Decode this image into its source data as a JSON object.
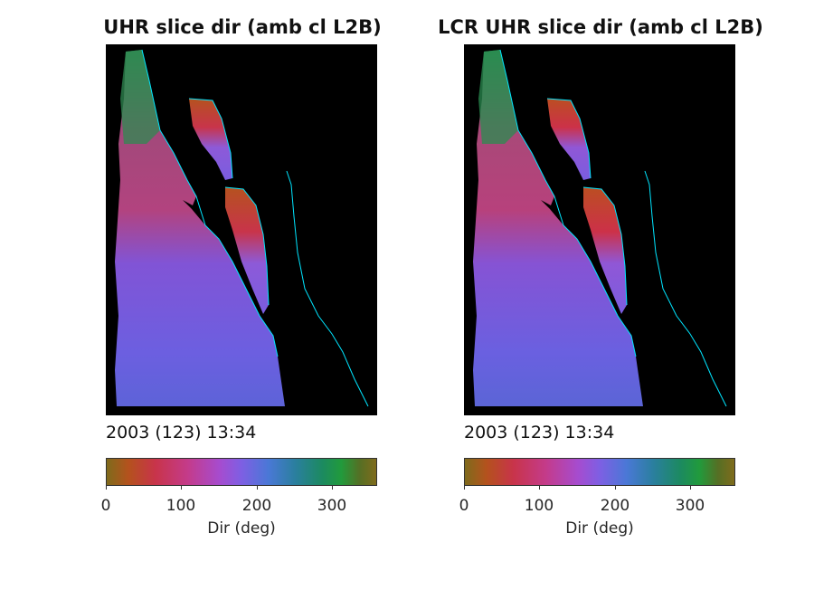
{
  "panels": [
    {
      "title": "UHR slice dir (amb cl L2B)",
      "timestamp": "2003 (123) 13:34"
    },
    {
      "title": "LCR UHR slice dir (amb cl L2B)",
      "timestamp": "2003 (123) 13:34"
    }
  ],
  "colorbar": {
    "label": "Dir (deg)",
    "ticks": [
      "0",
      "100",
      "200",
      "300"
    ],
    "range": [
      0,
      360
    ],
    "colormap": [
      "#7f6b1c",
      "#b4521d",
      "#c8344a",
      "#c43b8a",
      "#a64ccf",
      "#7e5fe3",
      "#4a78d6",
      "#2a7f9e",
      "#1c8a60",
      "#219a3c",
      "#566f24",
      "#7f6b1c"
    ]
  },
  "chart_data": [
    {
      "type": "heatmap",
      "title": "UHR slice dir (amb cl L2B)",
      "annotation": "2003 (123) 13:34",
      "colorbar_label": "Dir (deg)",
      "colorbar_ticks": [
        0,
        100,
        200,
        300
      ],
      "clim": [
        0,
        360
      ],
      "background": "#000000",
      "coastline_color": "#00e5ff"
    },
    {
      "type": "heatmap",
      "title": "LCR UHR slice dir (amb cl L2B)",
      "annotation": "2003 (123) 13:34",
      "colorbar_label": "Dir (deg)",
      "colorbar_ticks": [
        0,
        100,
        200,
        300
      ],
      "clim": [
        0,
        360
      ],
      "background": "#000000",
      "coastline_color": "#00e5ff"
    }
  ]
}
